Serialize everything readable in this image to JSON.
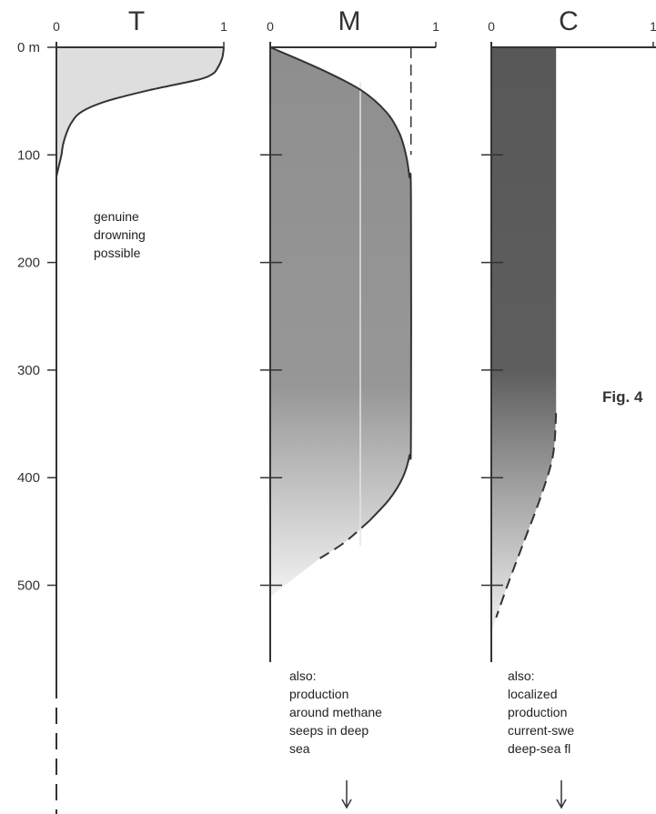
{
  "figure": {
    "fig_label": "Fig. 4"
  },
  "chart_data": {
    "type": "area",
    "y_axis": {
      "unit_label": "0 m",
      "ticks": [
        0,
        100,
        200,
        300,
        400,
        500
      ],
      "tick_labels": [
        "0 m",
        "100",
        "200",
        "300",
        "400",
        "500"
      ],
      "range": [
        0,
        600
      ],
      "inverted": true
    },
    "panels": [
      {
        "title": "T",
        "x_range": [
          0,
          1
        ],
        "x_tick_labels": [
          "0",
          "1"
        ],
        "profile": {
          "depth": [
            0,
            10,
            20,
            25,
            30,
            40,
            50,
            60,
            70,
            80,
            90,
            100,
            110,
            120
          ],
          "value": [
            1.0,
            0.99,
            0.96,
            0.93,
            0.85,
            0.55,
            0.3,
            0.15,
            0.09,
            0.06,
            0.04,
            0.03,
            0.015,
            0.0
          ]
        },
        "annotation": [
          "genuine",
          "drowning",
          "possible"
        ]
      },
      {
        "title": "M",
        "x_range": [
          0,
          1
        ],
        "x_tick_labels": [
          "0",
          "1"
        ],
        "profile": {
          "depth": [
            0,
            20,
            40,
            60,
            80,
            100,
            120,
            140,
            360,
            380,
            400,
            420,
            440
          ],
          "value": [
            0.0,
            0.3,
            0.55,
            0.7,
            0.78,
            0.82,
            0.84,
            0.85,
            0.85,
            0.84,
            0.8,
            0.72,
            0.6
          ]
        },
        "profile_dashed": {
          "depth": [
            440,
            460,
            475
          ],
          "value": [
            0.6,
            0.45,
            0.3
          ]
        },
        "reference_dashed": {
          "depth": [
            0,
            100
          ],
          "value": [
            0.85,
            0.85
          ]
        },
        "annotation": [
          "also:",
          "production",
          "around methane",
          "seeps in deep",
          "sea"
        ]
      },
      {
        "title": "C",
        "x_range": [
          0,
          1
        ],
        "x_tick_labels": [
          "0",
          "1"
        ],
        "profile": {
          "depth": [
            0,
            340
          ],
          "value": [
            0.4,
            0.4
          ]
        },
        "profile_dashed": {
          "depth": [
            340,
            380,
            420,
            460,
            500,
            530
          ],
          "value": [
            0.4,
            0.38,
            0.3,
            0.2,
            0.1,
            0.03
          ]
        },
        "annotation": [
          "also:",
          "localized",
          "production",
          "current-swe",
          "deep-sea fl"
        ]
      }
    ],
    "colors": {
      "T_fill": "#dedede",
      "M_fill_top": "#8e8e8e",
      "M_fill_bottom": "#f2f2f2",
      "C_fill_top": "#585858",
      "C_fill_bottom": "#f4f4f4",
      "line": "#333333"
    }
  }
}
